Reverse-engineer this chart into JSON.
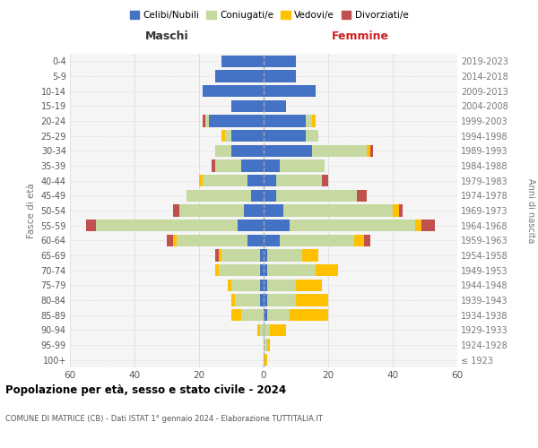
{
  "age_groups": [
    "100+",
    "95-99",
    "90-94",
    "85-89",
    "80-84",
    "75-79",
    "70-74",
    "65-69",
    "60-64",
    "55-59",
    "50-54",
    "45-49",
    "40-44",
    "35-39",
    "30-34",
    "25-29",
    "20-24",
    "15-19",
    "10-14",
    "5-9",
    "0-4"
  ],
  "birth_years": [
    "≤ 1923",
    "1924-1928",
    "1929-1933",
    "1934-1938",
    "1939-1943",
    "1944-1948",
    "1949-1953",
    "1954-1958",
    "1959-1963",
    "1964-1968",
    "1969-1973",
    "1974-1978",
    "1979-1983",
    "1984-1988",
    "1989-1993",
    "1994-1998",
    "1999-2003",
    "2004-2008",
    "2009-2013",
    "2014-2018",
    "2019-2023"
  ],
  "colors": {
    "celibi": "#4472c4",
    "coniugati": "#c5d9a0",
    "vedovi": "#ffc000",
    "divorziati": "#c0504d"
  },
  "maschi": {
    "celibi": [
      0,
      0,
      0,
      0,
      1,
      1,
      1,
      1,
      5,
      8,
      6,
      4,
      5,
      7,
      10,
      10,
      17,
      10,
      19,
      15,
      13
    ],
    "coniugati": [
      0,
      0,
      1,
      7,
      8,
      9,
      13,
      12,
      22,
      44,
      20,
      20,
      14,
      8,
      5,
      2,
      1,
      0,
      0,
      0,
      0
    ],
    "vedovi": [
      0,
      0,
      1,
      3,
      1,
      1,
      1,
      1,
      1,
      0,
      0,
      0,
      1,
      0,
      0,
      1,
      0,
      0,
      0,
      0,
      0
    ],
    "divorziati": [
      0,
      0,
      0,
      0,
      0,
      0,
      0,
      1,
      2,
      3,
      2,
      0,
      0,
      1,
      0,
      0,
      1,
      0,
      0,
      0,
      0
    ]
  },
  "femmine": {
    "celibi": [
      0,
      0,
      0,
      1,
      1,
      1,
      1,
      1,
      5,
      8,
      6,
      4,
      4,
      5,
      15,
      13,
      13,
      7,
      16,
      10,
      10
    ],
    "coniugati": [
      0,
      1,
      2,
      7,
      9,
      9,
      15,
      11,
      23,
      39,
      34,
      25,
      14,
      14,
      17,
      4,
      2,
      0,
      0,
      0,
      0
    ],
    "vedovi": [
      1,
      1,
      5,
      12,
      10,
      8,
      7,
      5,
      3,
      2,
      2,
      0,
      0,
      0,
      1,
      0,
      1,
      0,
      0,
      0,
      0
    ],
    "divorziati": [
      0,
      0,
      0,
      0,
      0,
      0,
      0,
      0,
      2,
      4,
      1,
      3,
      2,
      0,
      1,
      0,
      0,
      0,
      0,
      0,
      0
    ]
  },
  "xlim": 60,
  "title": "Popolazione per età, sesso e stato civile - 2024",
  "subtitle": "COMUNE DI MATRICE (CB) - Dati ISTAT 1° gennaio 2024 - Elaborazione TUTTITALIA.IT",
  "ylabel_left": "Fasce di età",
  "ylabel_right": "Anni di nascita",
  "xlabel_left": "Maschi",
  "xlabel_right": "Femmine",
  "bg_color": "#f5f5f5"
}
